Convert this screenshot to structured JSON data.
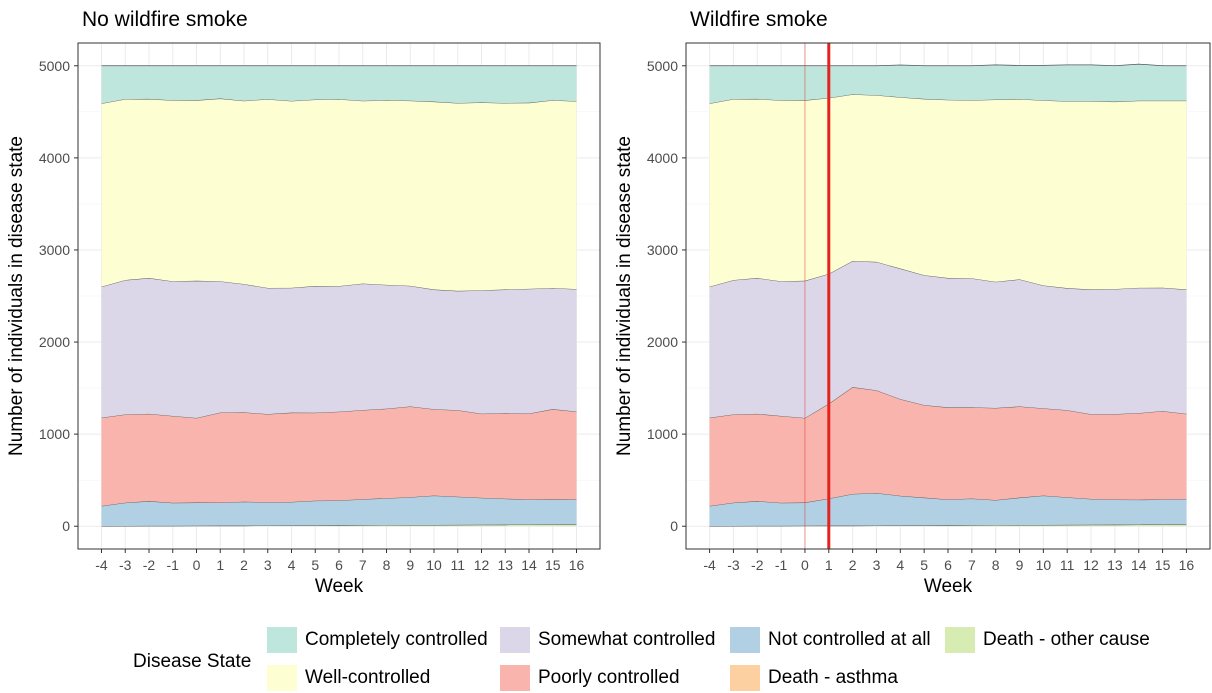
{
  "chart_data": [
    {
      "type": "area",
      "title": "No wildfire smoke",
      "xlabel": "Week",
      "ylabel": "Number of individuals in disease state",
      "x": [
        -4,
        -3,
        -2,
        -1,
        0,
        1,
        2,
        3,
        4,
        5,
        6,
        7,
        8,
        9,
        10,
        11,
        12,
        13,
        14,
        15,
        16
      ],
      "ylim": [
        0,
        5000
      ],
      "yticks": [
        0,
        1000,
        2000,
        3000,
        4000,
        5000
      ],
      "grid": true,
      "series": [
        {
          "name": "Death - other cause",
          "values": [
            2,
            3,
            4,
            4,
            5,
            6,
            6,
            7,
            8,
            9,
            10,
            11,
            12,
            13,
            14,
            15,
            16,
            17,
            18,
            19,
            20
          ]
        },
        {
          "name": "Death - asthma",
          "values": [
            0,
            0,
            0,
            0,
            0,
            0,
            0,
            0,
            0,
            0,
            0,
            0,
            0,
            0,
            0,
            0,
            0,
            0,
            0,
            0,
            0
          ]
        },
        {
          "name": "Not controlled at all",
          "values": [
            218,
            252,
            268,
            250,
            252,
            250,
            260,
            252,
            255,
            268,
            270,
            282,
            292,
            302,
            318,
            305,
            292,
            282,
            272,
            272,
            272
          ]
        },
        {
          "name": "Poorly controlled",
          "values": [
            958,
            958,
            948,
            943,
            918,
            978,
            970,
            958,
            970,
            955,
            963,
            968,
            972,
            985,
            938,
            940,
            913,
            928,
            933,
            980,
            953
          ]
        },
        {
          "name": "Somewhat controlled",
          "values": [
            1422,
            1460,
            1475,
            1462,
            1490,
            1425,
            1393,
            1370,
            1355,
            1376,
            1364,
            1373,
            1345,
            1310,
            1300,
            1295,
            1340,
            1343,
            1355,
            1315,
            1330
          ]
        },
        {
          "name": "Well-controlled",
          "values": [
            1990,
            1965,
            1945,
            1965,
            1960,
            1985,
            1990,
            2050,
            2030,
            2025,
            2030,
            1985,
            2005,
            2010,
            2040,
            2040,
            2040,
            2025,
            2020,
            2040,
            2040
          ]
        },
        {
          "name": "Completely controlled",
          "values": [
            410,
            362,
            360,
            376,
            375,
            356,
            381,
            363,
            382,
            367,
            363,
            381,
            374,
            380,
            390,
            405,
            399,
            405,
            402,
            374,
            385
          ]
        }
      ]
    },
    {
      "type": "area",
      "title": "Wildfire smoke",
      "xlabel": "Week",
      "ylabel": "Number of individuals in disease state",
      "x": [
        -4,
        -3,
        -2,
        -1,
        0,
        1,
        2,
        3,
        4,
        5,
        6,
        7,
        8,
        9,
        10,
        11,
        12,
        13,
        14,
        15,
        16
      ],
      "ylim": [
        0,
        5000
      ],
      "yticks": [
        0,
        1000,
        2000,
        3000,
        4000,
        5000
      ],
      "grid": true,
      "vlines": [
        {
          "x": 0,
          "style": "faint"
        },
        {
          "x": 1,
          "style": "bold"
        }
      ],
      "series": [
        {
          "name": "Death - other cause",
          "values": [
            2,
            3,
            4,
            4,
            5,
            6,
            6,
            7,
            8,
            9,
            10,
            11,
            12,
            13,
            14,
            15,
            16,
            17,
            18,
            19,
            20
          ]
        },
        {
          "name": "Death - asthma",
          "values": [
            0,
            0,
            0,
            0,
            0,
            0,
            0,
            0,
            0,
            0,
            0,
            0,
            0,
            0,
            0,
            0,
            0,
            0,
            0,
            0,
            0
          ]
        },
        {
          "name": "Not controlled at all",
          "values": [
            218,
            252,
            268,
            250,
            252,
            294,
            344,
            353,
            322,
            301,
            280,
            289,
            272,
            297,
            318,
            299,
            280,
            272,
            270,
            271,
            275
          ]
        },
        {
          "name": "Poorly controlled",
          "values": [
            958,
            958,
            948,
            943,
            918,
            1030,
            1160,
            1115,
            1050,
            1005,
            1000,
            991,
            1000,
            990,
            948,
            945,
            920,
            928,
            940,
            960,
            925
          ]
        },
        {
          "name": "Somewhat controlled",
          "values": [
            1422,
            1460,
            1475,
            1462,
            1490,
            1410,
            1370,
            1395,
            1418,
            1410,
            1405,
            1400,
            1370,
            1380,
            1334,
            1326,
            1354,
            1358,
            1360,
            1340,
            1350
          ]
        },
        {
          "name": "Well-controlled",
          "values": [
            1990,
            1965,
            1945,
            1965,
            1960,
            1910,
            1810,
            1810,
            1860,
            1915,
            1935,
            1935,
            1978,
            1958,
            2010,
            2030,
            2045,
            2035,
            2032,
            2030,
            2050
          ]
        },
        {
          "name": "Completely controlled",
          "values": [
            410,
            362,
            360,
            376,
            375,
            350,
            310,
            320,
            350,
            360,
            370,
            374,
            378,
            365,
            380,
            395,
            395,
            390,
            398,
            380,
            380
          ]
        }
      ]
    }
  ],
  "legend": {
    "title": "Disease State",
    "items": [
      {
        "label": "Completely controlled",
        "color": "#bfe6dd"
      },
      {
        "label": "Somewhat controlled",
        "color": "#dbd7e9"
      },
      {
        "label": "Not controlled at all",
        "color": "#b2d0e4"
      },
      {
        "label": "Death - other cause",
        "color": "#d6ecb3"
      },
      {
        "label": "Well-controlled",
        "color": "#fefed3"
      },
      {
        "label": "Poorly controlled",
        "color": "#f9b4ae"
      },
      {
        "label": "Death - asthma",
        "color": "#fcd0a1"
      }
    ]
  },
  "colors": {
    "Death - other cause": "#d6ecb3",
    "Death - asthma": "#fcd0a1",
    "Not controlled at all": "#b2d0e4",
    "Poorly controlled": "#f9b4ae",
    "Somewhat controlled": "#dbd7e9",
    "Well-controlled": "#fefed3",
    "Completely controlled": "#bfe6dd",
    "vline": "#e3241e"
  }
}
